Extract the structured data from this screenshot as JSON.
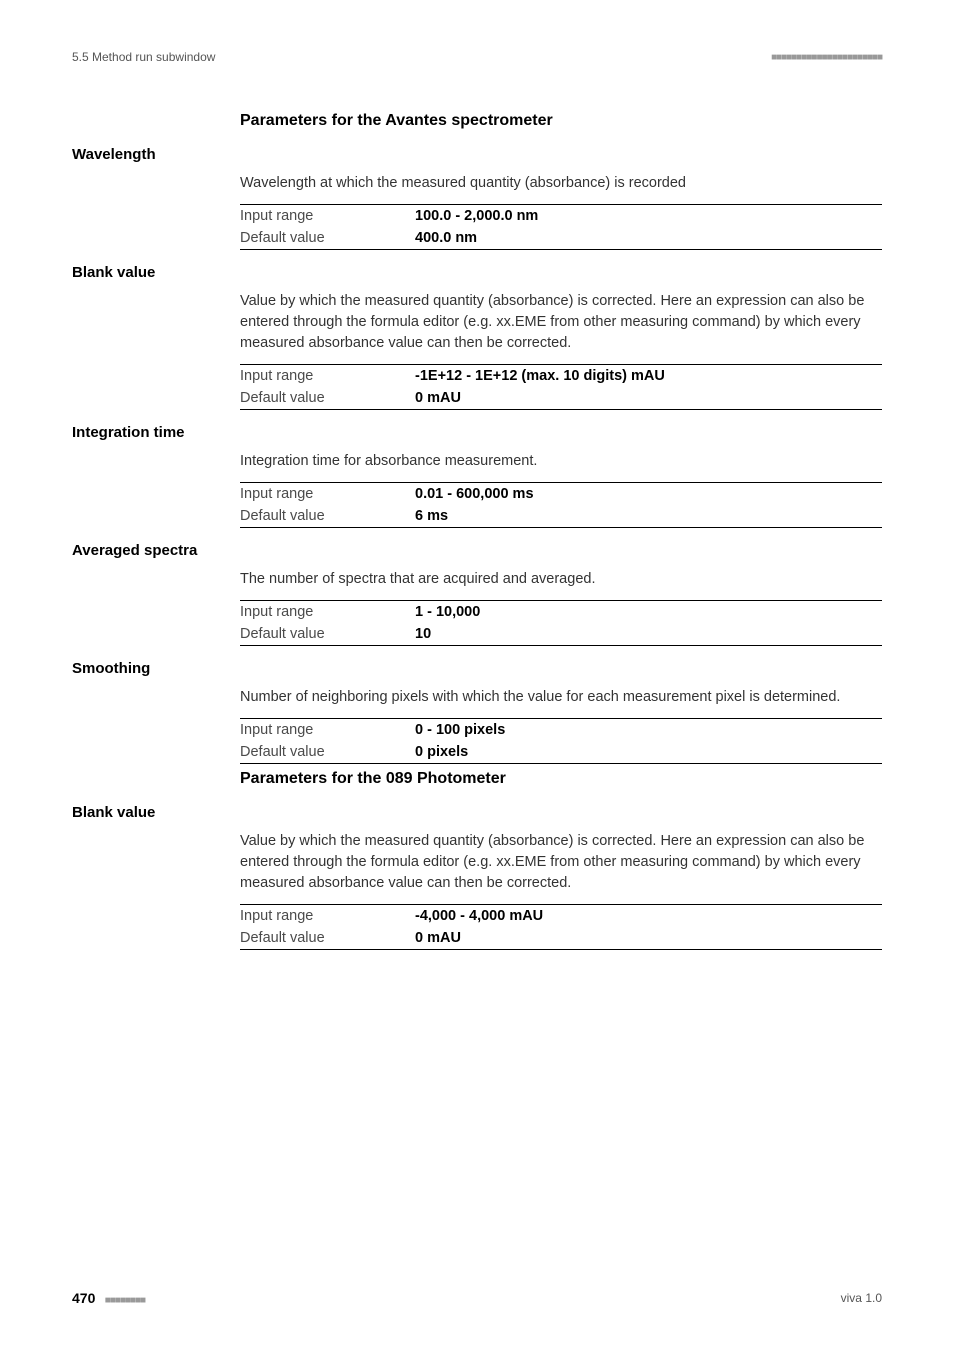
{
  "header": {
    "left": "5.5 Method run subwindow",
    "right": "■■■■■■■■■■■■■■■■■■■■■■"
  },
  "footer": {
    "page": "470",
    "dots": "■■■■■■■■",
    "right": "viva 1.0"
  },
  "sections": [
    {
      "type": "subheading",
      "text": "Parameters for the Avantes spectrometer"
    },
    {
      "type": "param",
      "label": "Wavelength",
      "desc": "Wavelength at which the measured quantity (absorbance) is recorded",
      "rows": [
        {
          "l": "Input range",
          "v": "100.0 - 2,000.0 nm"
        },
        {
          "l": "Default value",
          "v": "400.0 nm"
        }
      ]
    },
    {
      "type": "param",
      "label": "Blank value",
      "desc": "Value by which the measured quantity (absorbance) is corrected. Here an expression can also be entered through the formula editor (e.g. xx.EME from other measuring command) by which every measured absorbance value can then be corrected.",
      "rows": [
        {
          "l": "Input range",
          "v": "-1E+12 - 1E+12 (max. 10 digits) mAU"
        },
        {
          "l": "Default value",
          "v": "0 mAU"
        }
      ]
    },
    {
      "type": "param",
      "label": "Integration time",
      "desc": "Integration time for absorbance measurement.",
      "rows": [
        {
          "l": "Input range",
          "v": "0.01 - 600,000 ms"
        },
        {
          "l": "Default value",
          "v": "6 ms"
        }
      ]
    },
    {
      "type": "param",
      "label": "Averaged spectra",
      "desc": "The number of spectra that are acquired and averaged.",
      "rows": [
        {
          "l": "Input range",
          "v": "1 - 10,000"
        },
        {
          "l": "Default value",
          "v": "10"
        }
      ]
    },
    {
      "type": "param",
      "label": "Smoothing",
      "desc": "Number of neighboring pixels with which the value for each measurement pixel is determined.",
      "rows": [
        {
          "l": "Input range",
          "v": "0 - 100 pixels"
        },
        {
          "l": "Default value",
          "v": "0 pixels"
        }
      ]
    },
    {
      "type": "subheading",
      "text": "Parameters for the 089 Photometer"
    },
    {
      "type": "param",
      "label": "Blank value",
      "desc": "Value by which the measured quantity (absorbance) is corrected. Here an expression can also be entered through the formula editor (e.g. xx.EME from other measuring command) by which every measured absorbance value can then be corrected.",
      "rows": [
        {
          "l": "Input range",
          "v": "-4,000 - 4,000 mAU"
        },
        {
          "l": "Default value",
          "v": "0 mAU"
        }
      ]
    }
  ]
}
